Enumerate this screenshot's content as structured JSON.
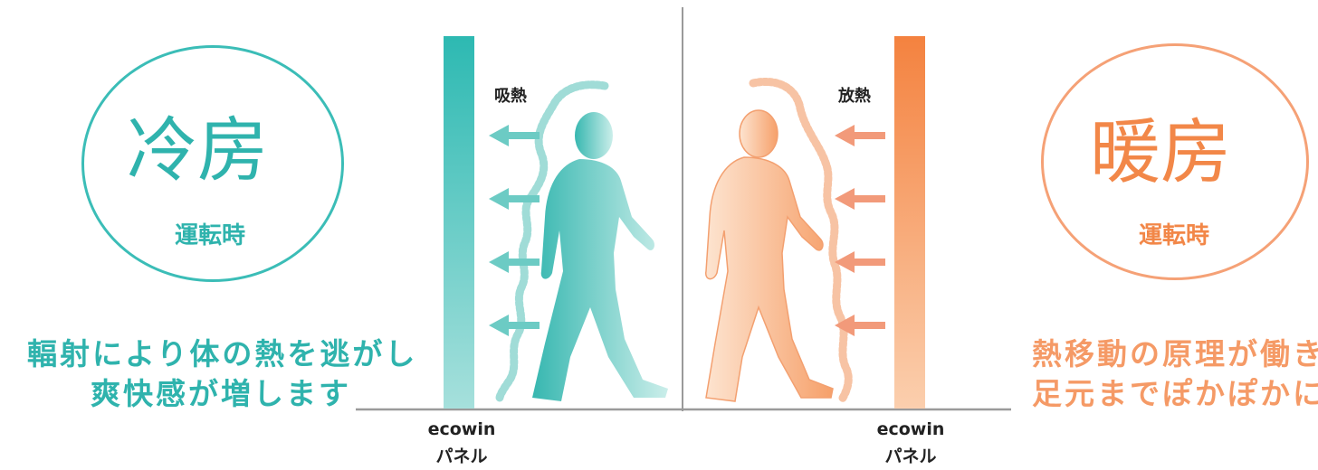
{
  "cooling": {
    "title": "冷房",
    "subtitle": "運転時",
    "caption_line1": "輻射により体の熱を逃がし",
    "caption_line2": "爽快感が増します",
    "flow_label": "吸熱",
    "panel_line1": "ecowin",
    "panel_line2": "パネル",
    "color": "#3bbdb7"
  },
  "heating": {
    "title": "暖房",
    "subtitle": "運転時",
    "caption_line1": "熱移動の原理が働き",
    "caption_line2": "足元までぽかぽかに",
    "flow_label": "放熱",
    "panel_line1": "ecowin",
    "panel_line2": "パネル",
    "color": "#f5894f"
  }
}
